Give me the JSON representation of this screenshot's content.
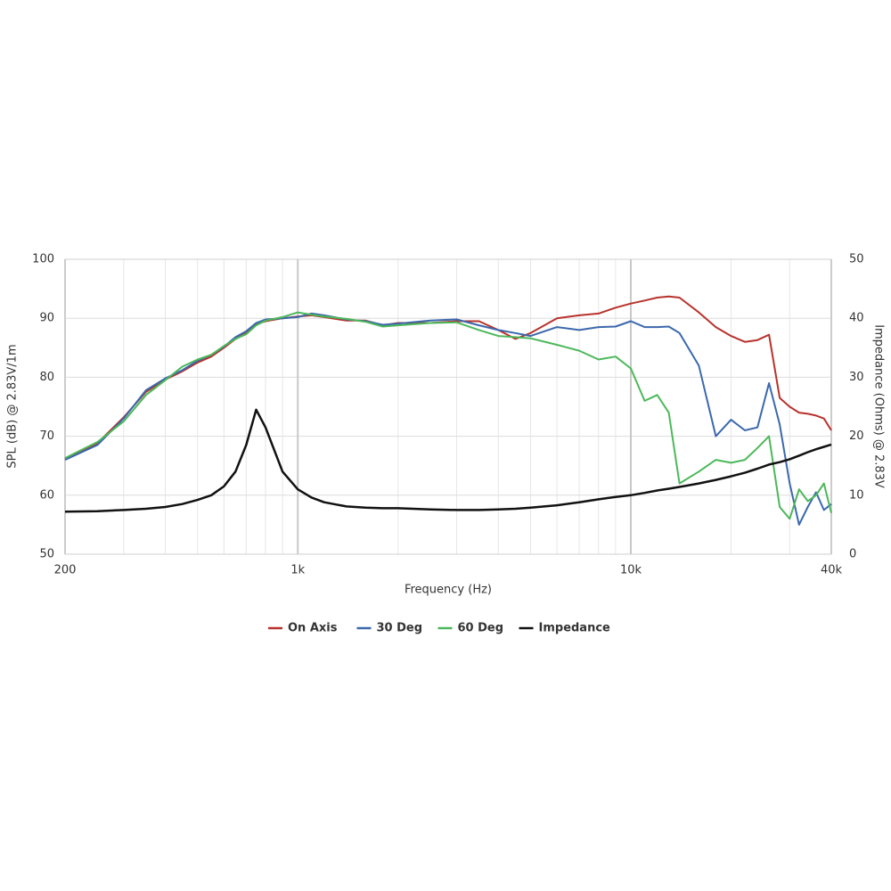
{
  "chart_data": {
    "type": "line",
    "x_label": "Frequency (Hz)",
    "y_label": "SPL (dB) @ 2.83V/1m",
    "y2_label": "Impedance (Ohms) @ 2.83V",
    "x_scale": "log",
    "grid": true,
    "legend": "bottom",
    "x": [
      200,
      250,
      300,
      350,
      400,
      450,
      500,
      550,
      600,
      650,
      700,
      750,
      800,
      900,
      1000,
      1100,
      1200,
      1400,
      1600,
      1800,
      2000,
      2500,
      3000,
      3500,
      4000,
      4500,
      5000,
      6000,
      7000,
      8000,
      9000,
      10000,
      11000,
      12000,
      13000,
      14000,
      16000,
      18000,
      20000,
      22000,
      24000,
      26000,
      28000,
      30000,
      32000,
      34000,
      36000,
      38000,
      40000
    ],
    "xlim": [
      200,
      40000
    ],
    "xticks": [
      200,
      {
        "value": 1000,
        "label": "1k"
      },
      {
        "value": 10000,
        "label": "10k"
      },
      {
        "value": 40000,
        "label": "40k"
      }
    ],
    "xminorticks": [
      300,
      400,
      500,
      600,
      700,
      800,
      900,
      2000,
      3000,
      4000,
      5000,
      6000,
      7000,
      8000,
      9000,
      20000,
      30000
    ],
    "ylim": [
      50,
      100
    ],
    "yticks": [
      50,
      60,
      70,
      80,
      90,
      100
    ],
    "y2lim": [
      0,
      50
    ],
    "y2ticks": [
      0,
      10,
      20,
      30,
      40,
      50
    ],
    "series": [
      {
        "name": "On Axis",
        "color": "#b8322c",
        "values": [
          66.2,
          68.8,
          73.2,
          77.5,
          79.6,
          81,
          82.5,
          83.5,
          85,
          86.5,
          87.5,
          89,
          89.5,
          90,
          90.3,
          90.5,
          90.2,
          89.6,
          89.6,
          88.8,
          89.2,
          89.2,
          89.5,
          89.5,
          88,
          86.5,
          87.5,
          90,
          90.5,
          90.8,
          91.8,
          92.5,
          93,
          93.5,
          93.7,
          93.5,
          91,
          88.5,
          87,
          86,
          86.3,
          87.2,
          76.5,
          75,
          74,
          73.8,
          73.5,
          73,
          71
        ]
      },
      {
        "name": "30 Deg",
        "color": "#3b68ad",
        "values": [
          66,
          68.5,
          73,
          77.8,
          79.8,
          81.2,
          82.8,
          83.8,
          85.2,
          86.8,
          87.8,
          89.2,
          89.8,
          90,
          90.2,
          90.8,
          90.5,
          89.8,
          89.5,
          88.9,
          89.1,
          89.6,
          89.8,
          88.8,
          88,
          87.5,
          87,
          88.5,
          88,
          88.5,
          88.6,
          89.5,
          88.5,
          88.5,
          88.6,
          87.5,
          82,
          70,
          72.8,
          71,
          71.5,
          79,
          72,
          62,
          55,
          58,
          60.5,
          57.5,
          58.5
        ]
      },
      {
        "name": "60 Deg",
        "color": "#4cb85a",
        "values": [
          66.3,
          69,
          72.5,
          77,
          79.5,
          81.8,
          83,
          83.8,
          85.3,
          86.5,
          87.3,
          88.8,
          89.6,
          90.2,
          91,
          90.6,
          90.3,
          89.9,
          89.4,
          88.6,
          88.8,
          89.2,
          89.3,
          88,
          87,
          86.8,
          86.6,
          85.5,
          84.5,
          83,
          83.5,
          81.5,
          76,
          77,
          74,
          62,
          64,
          66,
          65.5,
          66,
          68,
          70,
          58,
          56,
          61,
          59,
          60,
          62,
          57
        ]
      },
      {
        "name": "Impedance",
        "color": "#111111",
        "axis": "y2",
        "values": [
          7.2,
          7.3,
          7.5,
          7.7,
          8,
          8.5,
          9.2,
          10,
          11.5,
          14,
          18.5,
          24.5,
          21.5,
          14,
          11,
          9.6,
          8.8,
          8.1,
          7.9,
          7.8,
          7.8,
          7.6,
          7.5,
          7.5,
          7.6,
          7.7,
          7.9,
          8.3,
          8.8,
          9.3,
          9.7,
          10,
          10.4,
          10.8,
          11.1,
          11.4,
          12,
          12.6,
          13.2,
          13.8,
          14.5,
          15.2,
          15.6,
          16.1,
          16.7,
          17.3,
          17.8,
          18.2,
          18.6
        ]
      }
    ]
  }
}
